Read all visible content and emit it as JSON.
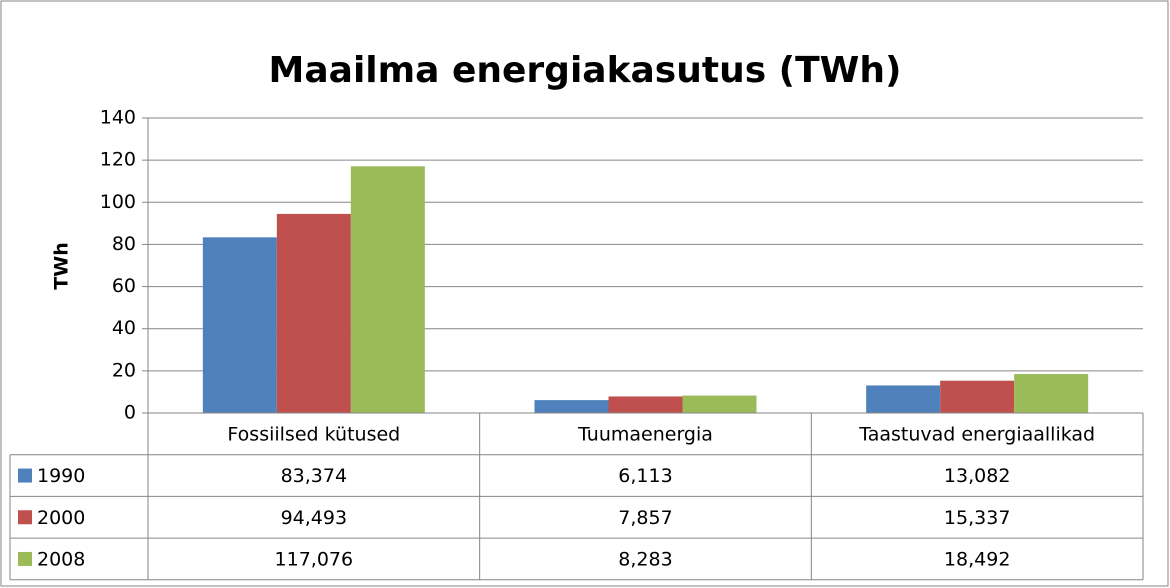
{
  "chart_data": {
    "type": "bar",
    "title": "Maailma energiakasutus (TWh)",
    "y_label": "TWh",
    "categories": [
      "Fossiilsed kütused",
      "Tuumaenergia",
      "Taastuvad energiaallikad"
    ],
    "series": [
      {
        "name": "1990",
        "color": "#4f81bd",
        "values": [
          83.374,
          6.113,
          13.082
        ],
        "value_labels": [
          "83,374",
          "6,113",
          "13,082"
        ]
      },
      {
        "name": "2000",
        "color": "#c0504d",
        "values": [
          94.493,
          7.857,
          15.337
        ],
        "value_labels": [
          "94,493",
          "7,857",
          "15,337"
        ]
      },
      {
        "name": "2008",
        "color": "#9bbb59",
        "values": [
          117.076,
          8.283,
          18.492
        ],
        "value_labels": [
          "117,076",
          "8,283",
          "18,492"
        ]
      }
    ],
    "ylim": [
      0,
      140
    ],
    "yticks": [
      0,
      20,
      40,
      60,
      80,
      100,
      120,
      140
    ],
    "grid": true
  }
}
